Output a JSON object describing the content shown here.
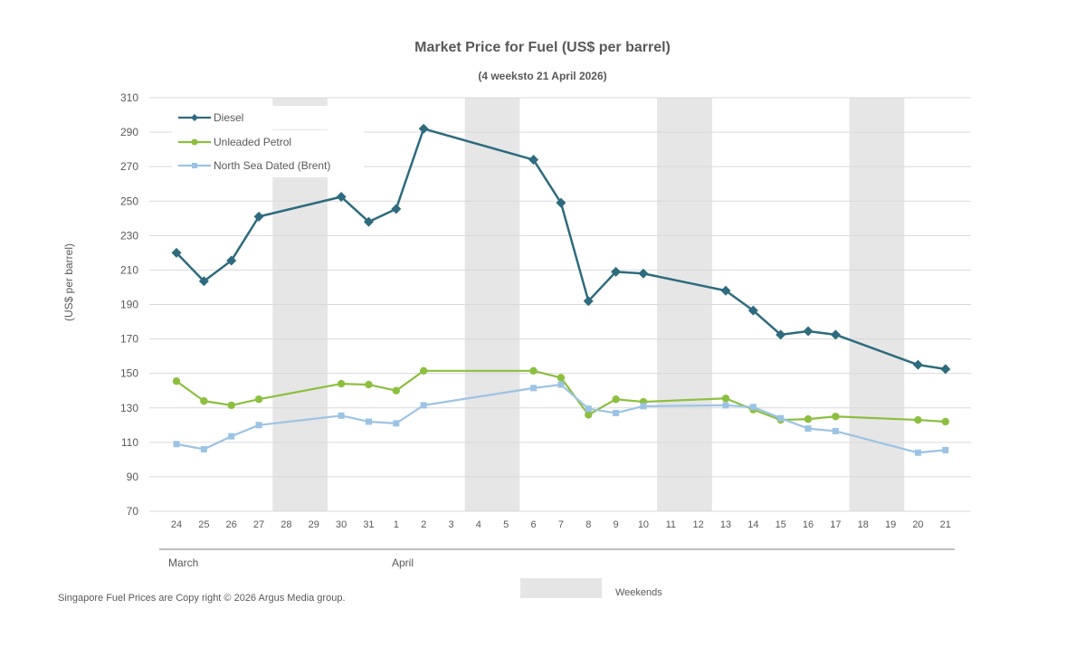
{
  "chart_data": {
    "type": "line",
    "title": "Market Price for Fuel (US$ per barrel)",
    "subtitle": "(4 weeksto 21 April 2026)",
    "ylabel": "(US$ per barrel)",
    "xlabel": "",
    "ylim": [
      70,
      310
    ],
    "yticks": [
      70,
      90,
      110,
      130,
      150,
      170,
      190,
      210,
      230,
      250,
      270,
      290,
      310
    ],
    "grid": true,
    "legend_position": "top-left",
    "categories": [
      "24",
      "25",
      "26",
      "27",
      "28",
      "29",
      "30",
      "31",
      "1",
      "2",
      "3",
      "4",
      "5",
      "6",
      "7",
      "8",
      "9",
      "10",
      "11",
      "12",
      "13",
      "14",
      "15",
      "16",
      "17",
      "18",
      "19",
      "20",
      "21"
    ],
    "months": [
      {
        "label": "March",
        "from": "24",
        "to": "31"
      },
      {
        "label": "April",
        "from": "1",
        "to": "21"
      }
    ],
    "weekend_bands": [
      [
        "28",
        "29"
      ],
      [
        "4",
        "5"
      ],
      [
        "11",
        "12"
      ],
      [
        "18",
        "19"
      ]
    ],
    "weekend_legend": "Weekends",
    "series": [
      {
        "name": "Diesel",
        "color": "#2e6b7e",
        "marker": "diamond",
        "values": [
          220,
          203.5,
          215.5,
          241,
          null,
          null,
          252.5,
          238,
          245.5,
          292,
          null,
          null,
          null,
          274,
          249,
          192,
          209,
          208,
          null,
          null,
          198,
          186.5,
          172.5,
          174.5,
          172.5,
          null,
          null,
          155,
          152.5
        ]
      },
      {
        "name": "Unleaded Petrol",
        "color": "#8cbf3f",
        "marker": "circle",
        "values": [
          145.5,
          134,
          131.5,
          135,
          null,
          null,
          144,
          143.5,
          140,
          151.5,
          null,
          null,
          null,
          151.5,
          147.5,
          126,
          135,
          133.5,
          null,
          null,
          135.5,
          129,
          123,
          123.5,
          125,
          null,
          null,
          123,
          122
        ]
      },
      {
        "name": "North Sea Dated (Brent)",
        "color": "#9cc3e4",
        "marker": "square",
        "values": [
          109,
          106,
          113.5,
          120,
          null,
          null,
          125.5,
          122,
          121,
          131.5,
          null,
          null,
          null,
          141.5,
          143.5,
          129.5,
          127,
          131,
          null,
          null,
          131.5,
          130.5,
          124,
          118,
          116.5,
          null,
          null,
          104,
          105.5
        ]
      }
    ]
  },
  "footer": "Singapore Fuel Prices are Copy right © 2026 Argus Media group."
}
